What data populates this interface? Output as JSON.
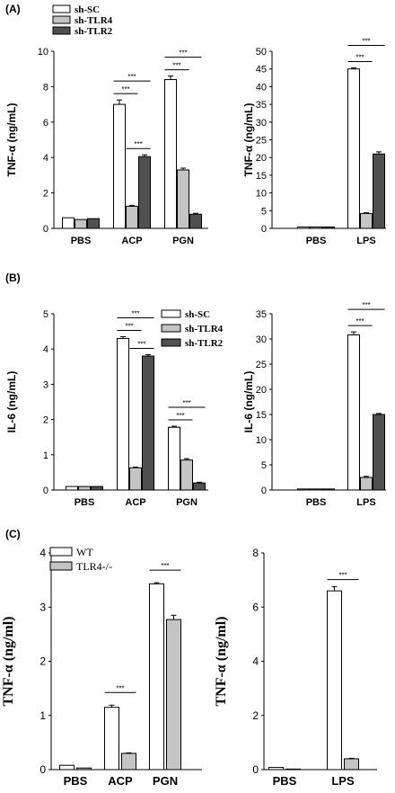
{
  "panel_labels": [
    "(A)",
    "(B)",
    "(C)"
  ],
  "colors": {
    "white_bar": "#ffffff",
    "light_gray_bar": "#c4c4c4",
    "dark_gray_bar": "#505050",
    "stroke": "#000000"
  },
  "chart_data": [
    {
      "type": "bar",
      "panel": "(A)",
      "ylabel": "TNF-α (ng/mL)",
      "categories": [
        "PBS",
        "ACP",
        "PGN"
      ],
      "ylim": [
        0,
        10
      ],
      "yticks": [
        0,
        2,
        4,
        6,
        8,
        10
      ],
      "series": [
        {
          "name": "sh-SC",
          "values": [
            0.6,
            7.0,
            8.4
          ],
          "errors": [
            0,
            0.25,
            0.2
          ],
          "color": "#ffffff"
        },
        {
          "name": "sh-TLR4",
          "values": [
            0.5,
            1.25,
            3.3
          ],
          "errors": [
            0,
            0.05,
            0.1
          ],
          "color": "#c4c4c4"
        },
        {
          "name": "sh-TLR2",
          "values": [
            0.55,
            4.05,
            0.8
          ],
          "errors": [
            0,
            0.1,
            0.05
          ],
          "color": "#505050"
        }
      ],
      "legend": {
        "position": "top-left",
        "labels": [
          "sh-SC",
          "sh-TLR4",
          "sh-TLR2"
        ]
      },
      "significance": [
        {
          "category": "ACP",
          "from": 0,
          "to": 1,
          "label": "***"
        },
        {
          "category": "ACP",
          "from": 0,
          "to": 2,
          "label": "***"
        },
        {
          "category": "ACP",
          "from": 1,
          "to": 2,
          "label": "***"
        },
        {
          "category": "PGN",
          "from": 0,
          "to": 1,
          "label": "***"
        },
        {
          "category": "PGN",
          "from": 0,
          "to": 2,
          "label": "***"
        }
      ]
    },
    {
      "type": "bar",
      "panel": "(A)",
      "ylabel": "TNF-α (ng/mL)",
      "categories": [
        "PBS",
        "LPS"
      ],
      "ylim": [
        0,
        50
      ],
      "yticks": [
        0,
        5,
        10,
        15,
        20,
        25,
        30,
        35,
        40,
        45,
        50
      ],
      "series": [
        {
          "name": "sh-SC",
          "values": [
            0.4,
            45.0
          ],
          "errors": [
            0,
            0.3
          ],
          "color": "#ffffff"
        },
        {
          "name": "sh-TLR4",
          "values": [
            0.4,
            4.2
          ],
          "errors": [
            0,
            0.2
          ],
          "color": "#c4c4c4"
        },
        {
          "name": "sh-TLR2",
          "values": [
            0.4,
            21.0
          ],
          "errors": [
            0,
            0.6
          ],
          "color": "#505050"
        }
      ],
      "significance": [
        {
          "category": "LPS",
          "from": 0,
          "to": 1,
          "label": "***"
        },
        {
          "category": "LPS",
          "from": 0,
          "to": 2,
          "label": "***"
        }
      ]
    },
    {
      "type": "bar",
      "panel": "(B)",
      "ylabel": "IL-6 (ng/mL)",
      "categories": [
        "PBS",
        "ACP",
        "PGN"
      ],
      "ylim": [
        0,
        5
      ],
      "yticks": [
        0,
        1,
        2,
        3,
        4,
        5
      ],
      "series": [
        {
          "name": "sh-SC",
          "values": [
            0.1,
            4.3,
            1.78
          ],
          "errors": [
            0,
            0.05,
            0.03
          ],
          "color": "#ffffff"
        },
        {
          "name": "sh-TLR4",
          "values": [
            0.1,
            0.63,
            0.85
          ],
          "errors": [
            0,
            0.02,
            0.04
          ],
          "color": "#c4c4c4"
        },
        {
          "name": "sh-TLR2",
          "values": [
            0.1,
            3.8,
            0.2
          ],
          "errors": [
            0,
            0.04,
            0.02
          ],
          "color": "#505050"
        }
      ],
      "legend": {
        "position": "top-right",
        "labels": [
          "sh-SC",
          "sh-TLR4",
          "sh-TLR2"
        ]
      },
      "significance": [
        {
          "category": "ACP",
          "from": 0,
          "to": 1,
          "label": "***"
        },
        {
          "category": "ACP",
          "from": 0,
          "to": 2,
          "label": "***"
        },
        {
          "category": "ACP",
          "from": 1,
          "to": 2,
          "label": "***"
        },
        {
          "category": "PGN",
          "from": 0,
          "to": 1,
          "label": "***"
        },
        {
          "category": "PGN",
          "from": 0,
          "to": 2,
          "label": "***"
        }
      ]
    },
    {
      "type": "bar",
      "panel": "(B)",
      "ylabel": "IL-6 (ng/mL)",
      "categories": [
        "PBS",
        "LPS"
      ],
      "ylim": [
        0,
        35
      ],
      "yticks": [
        0,
        5,
        10,
        15,
        20,
        25,
        30,
        35
      ],
      "series": [
        {
          "name": "sh-SC",
          "values": [
            0.2,
            30.8
          ],
          "errors": [
            0,
            0.6
          ],
          "color": "#ffffff"
        },
        {
          "name": "sh-TLR4",
          "values": [
            0.2,
            2.5
          ],
          "errors": [
            0,
            0.2
          ],
          "color": "#c4c4c4"
        },
        {
          "name": "sh-TLR2",
          "values": [
            0.2,
            15.0
          ],
          "errors": [
            0,
            0.2
          ],
          "color": "#505050"
        }
      ],
      "significance": [
        {
          "category": "LPS",
          "from": 0,
          "to": 1,
          "label": "***"
        },
        {
          "category": "LPS",
          "from": 0,
          "to": 2,
          "label": "***"
        }
      ]
    },
    {
      "type": "bar",
      "panel": "(C)",
      "ylabel": "TNF-α (ng/ml)",
      "categories": [
        "PBS",
        "ACP",
        "PGN"
      ],
      "ylim": [
        0,
        4
      ],
      "yticks": [
        0,
        1,
        2,
        3,
        4
      ],
      "series": [
        {
          "name": "WT",
          "values": [
            0.08,
            1.15,
            3.43
          ],
          "errors": [
            0,
            0.04,
            0.02
          ],
          "color": "#ffffff"
        },
        {
          "name": "TLR4-/-",
          "values": [
            0.03,
            0.3,
            2.77
          ],
          "errors": [
            0,
            0.01,
            0.08
          ],
          "color": "#c4c4c4"
        }
      ],
      "legend": {
        "position": "top-left",
        "labels": [
          "WT",
          "TLR4-/-"
        ]
      },
      "significance": [
        {
          "category": "ACP",
          "from": 0,
          "to": 1,
          "label": "***"
        },
        {
          "category": "PGN",
          "from": 0,
          "to": 1,
          "label": "***"
        }
      ]
    },
    {
      "type": "bar",
      "panel": "(C)",
      "ylabel": "TNF-α (ng/ml)",
      "categories": [
        "PBS",
        "LPS"
      ],
      "ylim": [
        0,
        8
      ],
      "yticks": [
        0,
        2,
        4,
        6,
        8
      ],
      "series": [
        {
          "name": "WT",
          "values": [
            0.08,
            6.6
          ],
          "errors": [
            0,
            0.15
          ],
          "color": "#ffffff"
        },
        {
          "name": "TLR4-/-",
          "values": [
            0.02,
            0.4
          ],
          "errors": [
            0,
            0.02
          ],
          "color": "#c4c4c4"
        }
      ],
      "significance": [
        {
          "category": "LPS",
          "from": 0,
          "to": 1,
          "label": "***"
        }
      ]
    }
  ]
}
